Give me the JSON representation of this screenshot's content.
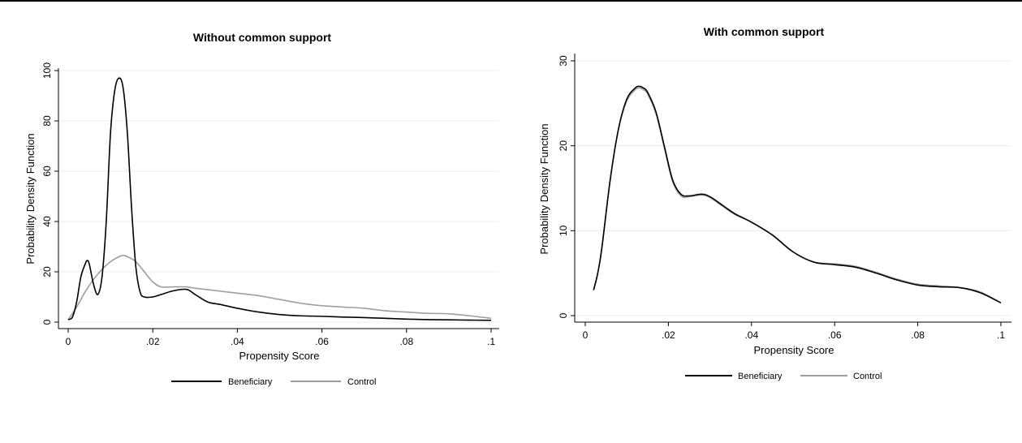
{
  "chart_data": [
    {
      "type": "line",
      "title": "Without common support",
      "xlabel": "Propensity Score",
      "ylabel": "Probability Density Function",
      "xlim": [
        0,
        0.1
      ],
      "ylim": [
        0,
        100
      ],
      "xticks": [
        0,
        0.02,
        0.04,
        0.06,
        0.08,
        0.1
      ],
      "xtick_labels": [
        "0",
        ".02",
        ".04",
        ".06",
        ".08",
        ".1"
      ],
      "yticks": [
        0,
        20,
        40,
        60,
        80,
        100
      ],
      "ytick_labels": [
        "0",
        "20",
        "40",
        "60",
        "80",
        "100"
      ],
      "grid": true,
      "legend_position": "bottom",
      "series": [
        {
          "name": "Beneficiary",
          "color": "#000000",
          "x": [
            0,
            0.001,
            0.002,
            0.003,
            0.004,
            0.0045,
            0.005,
            0.006,
            0.007,
            0.008,
            0.009,
            0.01,
            0.011,
            0.012,
            0.013,
            0.014,
            0.015,
            0.016,
            0.017,
            0.018,
            0.02,
            0.022,
            0.025,
            0.028,
            0.03,
            0.033,
            0.036,
            0.04,
            0.045,
            0.05,
            0.055,
            0.06,
            0.065,
            0.07,
            0.075,
            0.08,
            0.085,
            0.09,
            0.095,
            0.1
          ],
          "y": [
            1,
            2,
            8,
            18,
            23,
            24.5,
            23,
            15,
            11,
            18,
            40,
            75,
            92,
            97,
            93,
            75,
            45,
            22,
            12,
            10,
            10,
            11,
            12.5,
            13,
            11,
            8,
            7,
            5.5,
            4,
            3,
            2.5,
            2.3,
            2,
            1.8,
            1.5,
            1.2,
            1,
            0.9,
            0.8,
            0.7
          ]
        },
        {
          "name": "Control",
          "color": "#9e9e9e",
          "x": [
            0,
            0.002,
            0.004,
            0.006,
            0.008,
            0.01,
            0.012,
            0.013,
            0.014,
            0.016,
            0.018,
            0.02,
            0.022,
            0.025,
            0.028,
            0.03,
            0.035,
            0.04,
            0.045,
            0.05,
            0.055,
            0.06,
            0.065,
            0.07,
            0.075,
            0.08,
            0.085,
            0.09,
            0.095,
            0.1
          ],
          "y": [
            1,
            6,
            12,
            17,
            21,
            24,
            26,
            26.5,
            26,
            24,
            20,
            16,
            14,
            14,
            14,
            13.5,
            12.5,
            11.5,
            10.5,
            9,
            7.5,
            6.5,
            6,
            5.5,
            4.5,
            4,
            3.5,
            3.3,
            2.5,
            1.5
          ]
        }
      ]
    },
    {
      "type": "line",
      "title": "With common support",
      "xlabel": "Propensity Score",
      "ylabel": "Probability Density Function",
      "xlim": [
        0,
        0.1
      ],
      "ylim": [
        0,
        30
      ],
      "xticks": [
        0,
        0.02,
        0.04,
        0.06,
        0.08,
        0.1
      ],
      "xtick_labels": [
        "0",
        ".02",
        ".04",
        ".06",
        ".08",
        ".1"
      ],
      "yticks": [
        0,
        10,
        20,
        30
      ],
      "ytick_labels": [
        "0",
        "10",
        "20",
        "30"
      ],
      "grid": true,
      "legend_position": "bottom",
      "series": [
        {
          "name": "Beneficiary",
          "color": "#000000",
          "x": [
            0.002,
            0.003,
            0.004,
            0.006,
            0.008,
            0.01,
            0.012,
            0.013,
            0.014,
            0.015,
            0.017,
            0.019,
            0.021,
            0.023,
            0.025,
            0.028,
            0.03,
            0.033,
            0.036,
            0.04,
            0.045,
            0.05,
            0.055,
            0.06,
            0.065,
            0.07,
            0.075,
            0.08,
            0.085,
            0.09,
            0.095,
            0.1
          ],
          "y": [
            3,
            5,
            8,
            16,
            22,
            25.5,
            26.8,
            27,
            26.8,
            26.3,
            24,
            20,
            16,
            14.3,
            14.1,
            14.3,
            14,
            13,
            12,
            11,
            9.5,
            7.5,
            6.3,
            6,
            5.7,
            5,
            4.2,
            3.6,
            3.4,
            3.3,
            2.7,
            1.5
          ]
        },
        {
          "name": "Control",
          "color": "#9e9e9e",
          "x": [
            0.002,
            0.003,
            0.004,
            0.006,
            0.008,
            0.01,
            0.012,
            0.013,
            0.014,
            0.015,
            0.017,
            0.019,
            0.021,
            0.023,
            0.025,
            0.028,
            0.03,
            0.033,
            0.036,
            0.04,
            0.045,
            0.05,
            0.055,
            0.06,
            0.065,
            0.07,
            0.075,
            0.08,
            0.085,
            0.09,
            0.095,
            0.1
          ],
          "y": [
            3,
            5,
            8,
            16,
            22,
            25.3,
            26.6,
            26.8,
            26.6,
            26.1,
            23.8,
            19.8,
            15.8,
            14.1,
            14,
            14.2,
            13.9,
            12.9,
            11.9,
            11,
            9.5,
            7.5,
            6.3,
            6.1,
            5.8,
            5.1,
            4.3,
            3.7,
            3.5,
            3.3,
            2.8,
            1.5
          ]
        }
      ]
    }
  ]
}
